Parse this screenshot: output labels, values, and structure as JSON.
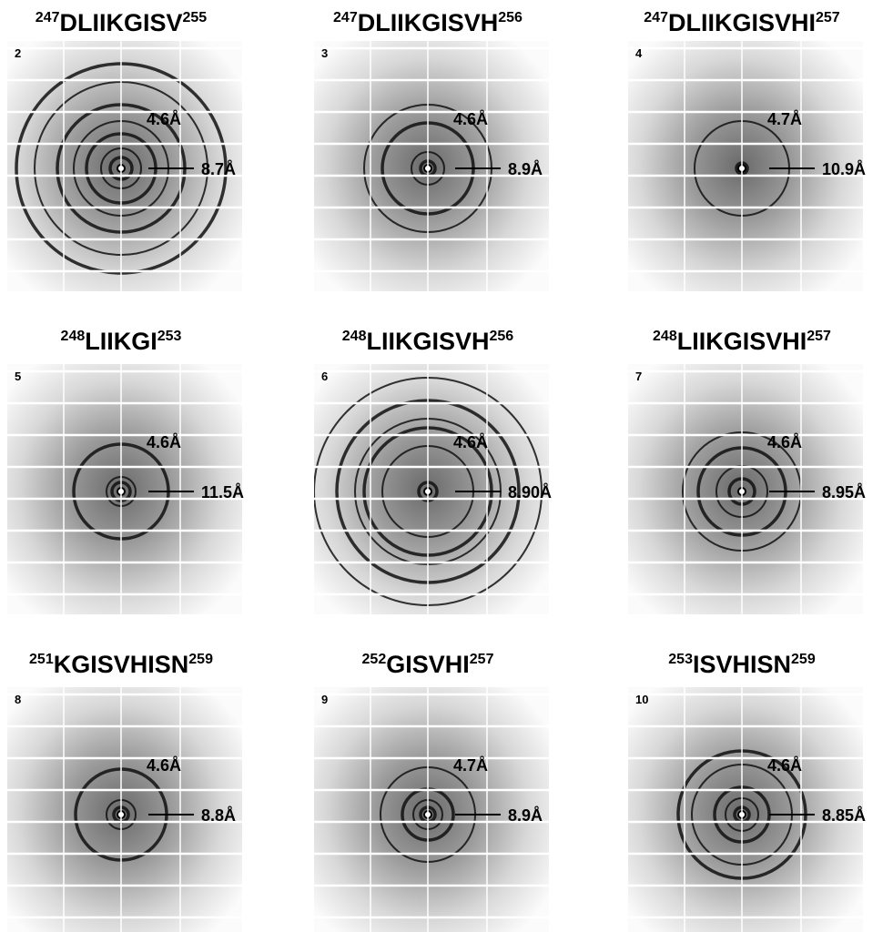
{
  "panels": [
    {
      "title": {
        "start": "247",
        "sequence": "DLIIKGISV",
        "end": "255"
      },
      "number": "2",
      "labels": [
        "4.6Å",
        "8.7Å"
      ]
    },
    {
      "title": {
        "start": "247",
        "sequence": "DLIIKGISVH",
        "end": "256"
      },
      "number": "3",
      "labels": [
        "4.6Å",
        "8.9Å"
      ]
    },
    {
      "title": {
        "start": "247",
        "sequence": "DLIIKGISVHI",
        "end": "257"
      },
      "number": "4",
      "labels": [
        "4.7Å",
        "10.9Å"
      ]
    },
    {
      "title": {
        "start": "248",
        "sequence": "LIIKGI",
        "end": "253"
      },
      "number": "5",
      "labels": [
        "4.6Å",
        "11.5Å"
      ]
    },
    {
      "title": {
        "start": "248",
        "sequence": "LIIKGISVH",
        "end": "256"
      },
      "number": "6",
      "labels": [
        "4.6Å",
        "8.90Å"
      ]
    },
    {
      "title": {
        "start": "248",
        "sequence": "LIIKGISVHI",
        "end": "257"
      },
      "number": "7",
      "labels": [
        "4.6Å",
        "8.95Å"
      ]
    },
    {
      "title": {
        "start": "251",
        "sequence": "KGISVHISN",
        "end": "259"
      },
      "number": "8",
      "labels": [
        "4.6Å",
        "8.8Å"
      ]
    },
    {
      "title": {
        "start": "252",
        "sequence": "GISVHI",
        "end": "257"
      },
      "number": "9",
      "labels": [
        "4.7Å",
        "8.9Å"
      ]
    },
    {
      "title": {
        "start": "253",
        "sequence": "ISVHISN",
        "end": "259"
      },
      "number": "10",
      "labels": [
        "4.6Å",
        "8.85Å"
      ]
    }
  ]
}
